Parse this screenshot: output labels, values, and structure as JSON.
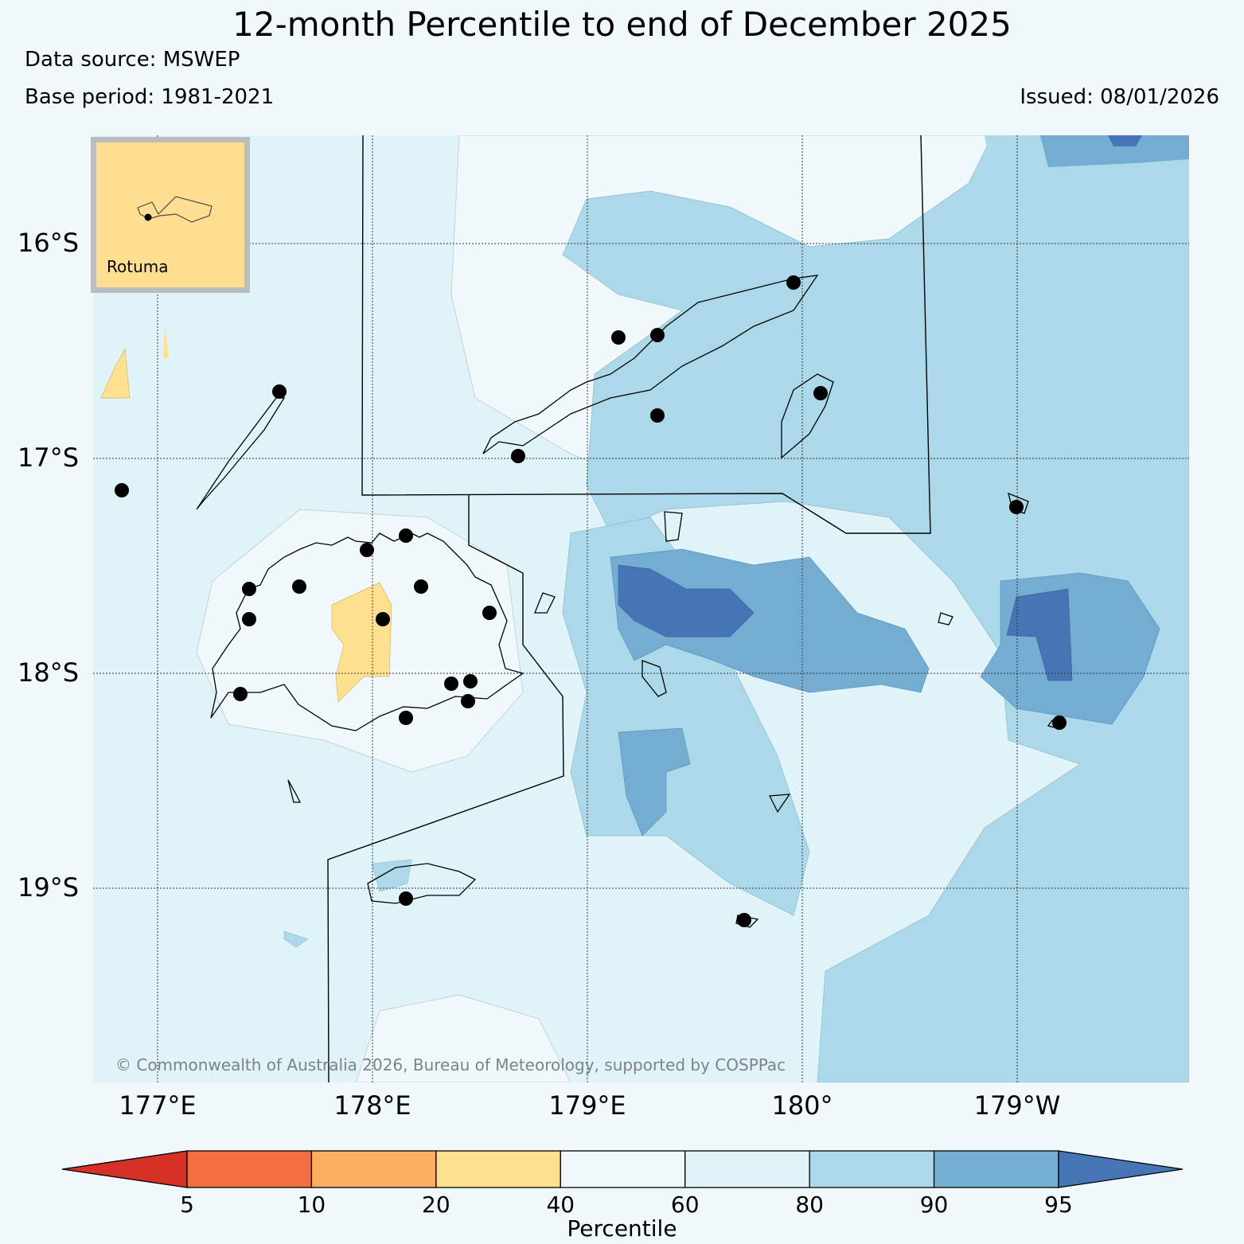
{
  "title": "12-month Percentile to end of December 2025",
  "data_source": "Data source: MSWEP",
  "base_period": "Base period: 1981-2021",
  "issued": "Issued: 08/01/2026",
  "copyright": "© Commonwealth of Australia 2026, Bureau of Meteorology, supported by COSPPac",
  "inset_label": "Rotuma",
  "lat_labels": [
    "16°S",
    "17°S",
    "18°S",
    "19°S"
  ],
  "lon_labels": [
    "177°E",
    "178°E",
    "179°E",
    "180°",
    "179°W"
  ],
  "colorbar": {
    "title": "Percentile",
    "ticks": [
      "5",
      "10",
      "20",
      "40",
      "60",
      "80",
      "90",
      "95"
    ],
    "colors": [
      "#d73027",
      "#f46d43",
      "#fdae61",
      "#fee090",
      "#f1f8fb",
      "#e0f3f8",
      "#abd9e9",
      "#74add1",
      "#4575b4"
    ]
  }
}
